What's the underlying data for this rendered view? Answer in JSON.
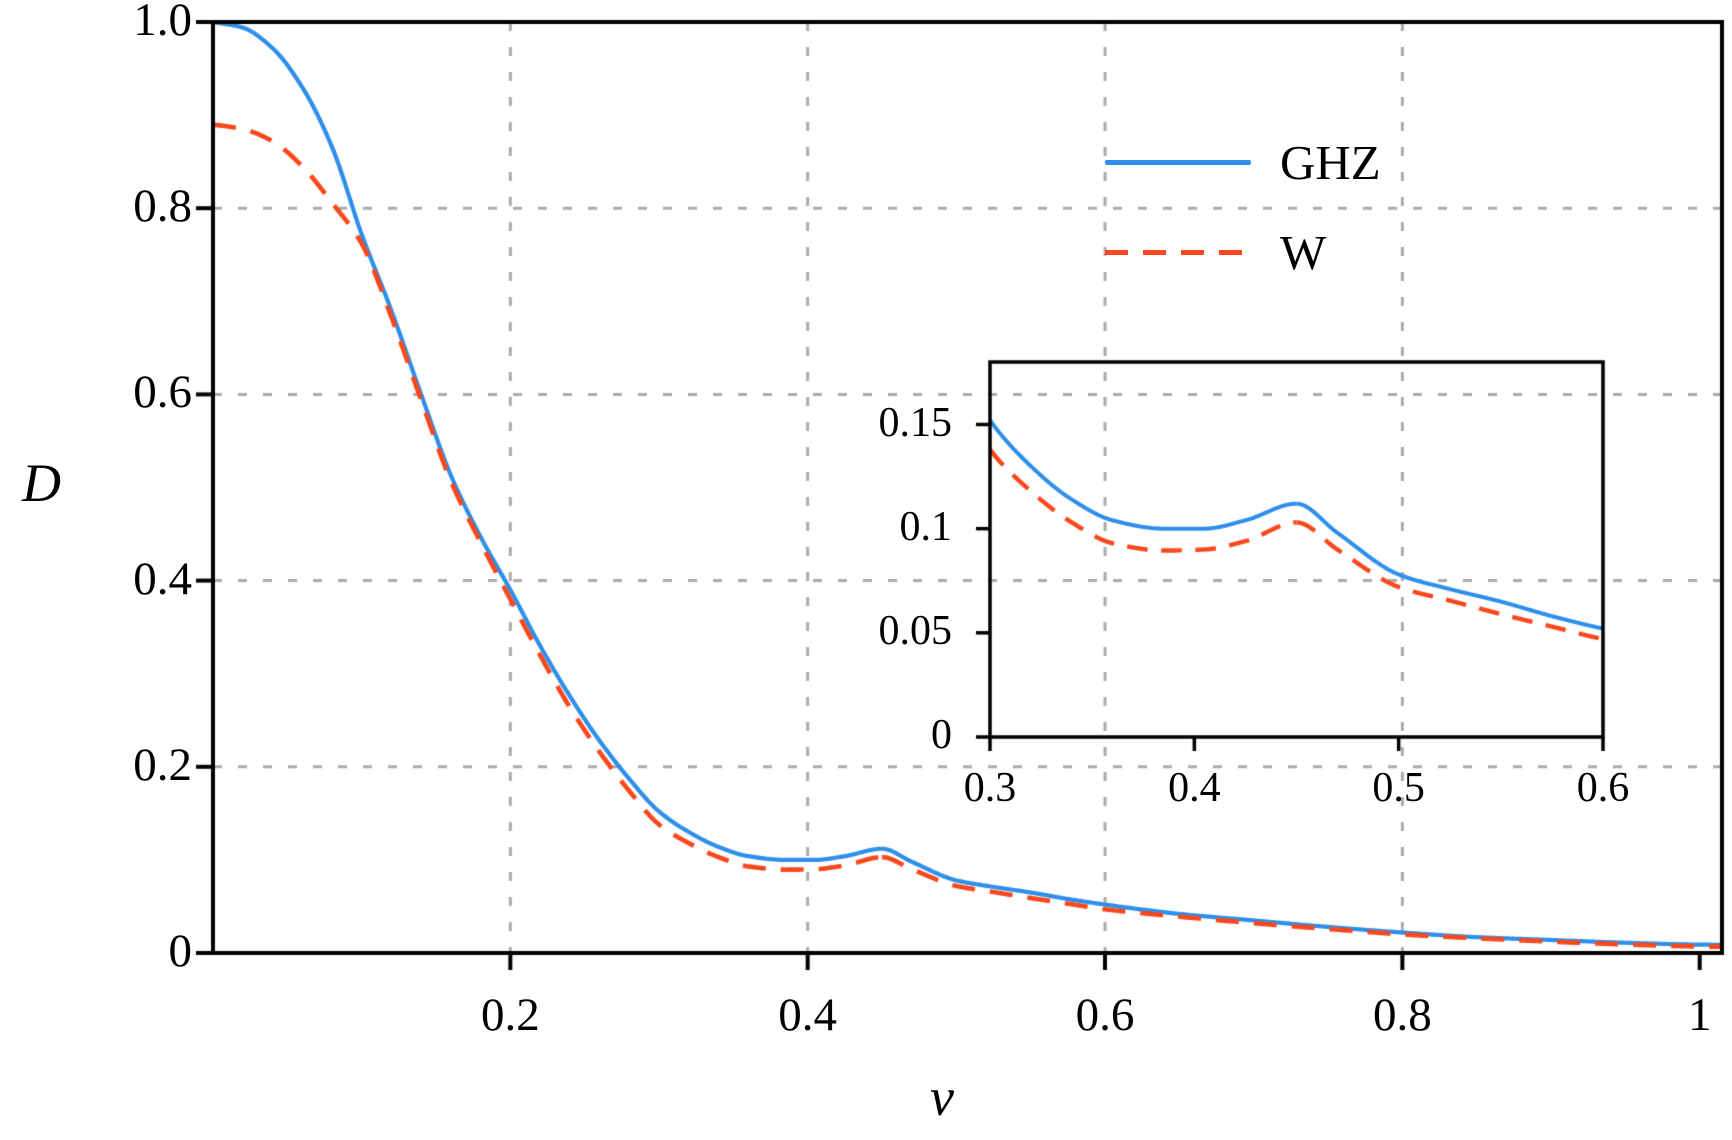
{
  "chart_data": {
    "type": "line",
    "title": "",
    "xlabel": "v",
    "ylabel": "D",
    "xlim": [
      0,
      1.015
    ],
    "ylim": [
      0,
      1.0
    ],
    "grid": {
      "on": true,
      "style": "dashed",
      "color": "#ABABAB",
      "x": [
        0.2,
        0.4,
        0.6,
        0.8
      ],
      "y": [
        0.2,
        0.4,
        0.6,
        0.8
      ]
    },
    "xticks": {
      "values": [
        0.2,
        0.4,
        0.6,
        0.8,
        1.0
      ],
      "labels": [
        "0.2",
        "0.4",
        "0.6",
        "0.8",
        "1"
      ]
    },
    "yticks": {
      "values": [
        0,
        0.2,
        0.4,
        0.6,
        0.8,
        1.0
      ],
      "labels": [
        "0",
        "0.2",
        "0.4",
        "0.6",
        "0.8",
        "1.0"
      ]
    },
    "legend": {
      "position": "upper-right",
      "frame": false
    },
    "kink_v": 0.45,
    "x": [
      0,
      0.02,
      0.04,
      0.06,
      0.08,
      0.1,
      0.12,
      0.14,
      0.16,
      0.18,
      0.2,
      0.22,
      0.24,
      0.26,
      0.28,
      0.3,
      0.32,
      0.34,
      0.36,
      0.385,
      0.405,
      0.425,
      0.45,
      0.47,
      0.5,
      0.525,
      0.55,
      0.575,
      0.6,
      0.65,
      0.7,
      0.75,
      0.8,
      0.85,
      0.9,
      0.95,
      1.0,
      1.015
    ],
    "series": [
      {
        "name": "GHZ",
        "color": "#2E8FE9",
        "style": "solid",
        "values": [
          1.0,
          0.994,
          0.972,
          0.93,
          0.866,
          0.772,
          0.69,
          0.6,
          0.513,
          0.447,
          0.39,
          0.33,
          0.276,
          0.228,
          0.187,
          0.152,
          0.13,
          0.114,
          0.104,
          0.1,
          0.1,
          0.104,
          0.112,
          0.098,
          0.078,
          0.071,
          0.065,
          0.058,
          0.052,
          0.042,
          0.035,
          0.028,
          0.022,
          0.017,
          0.014,
          0.011,
          0.009,
          0.0088
        ]
      },
      {
        "name": "W",
        "color": "#F8481C",
        "style": "dashed",
        "values": [
          0.89,
          0.885,
          0.872,
          0.845,
          0.806,
          0.762,
          0.683,
          0.594,
          0.507,
          0.441,
          0.38,
          0.32,
          0.264,
          0.216,
          0.174,
          0.138,
          0.118,
          0.103,
          0.093,
          0.0895,
          0.09,
          0.094,
          0.103,
          0.09,
          0.072,
          0.0655,
          0.059,
          0.053,
          0.047,
          0.039,
          0.032,
          0.0258,
          0.02,
          0.0158,
          0.0122,
          0.0092,
          0.007,
          0.0068
        ]
      }
    ],
    "inset": {
      "xlim": [
        0.3,
        0.6
      ],
      "ylim": [
        0,
        0.18
      ],
      "xticks": {
        "values": [
          0.3,
          0.4,
          0.5,
          0.6
        ],
        "labels": [
          "0.3",
          "0.4",
          "0.5",
          "0.6"
        ]
      },
      "yticks": {
        "values": [
          0,
          0.05,
          0.1,
          0.15
        ],
        "labels": [
          "0",
          "0.05",
          "0.1",
          "0.15"
        ]
      },
      "background": "transparent"
    }
  }
}
